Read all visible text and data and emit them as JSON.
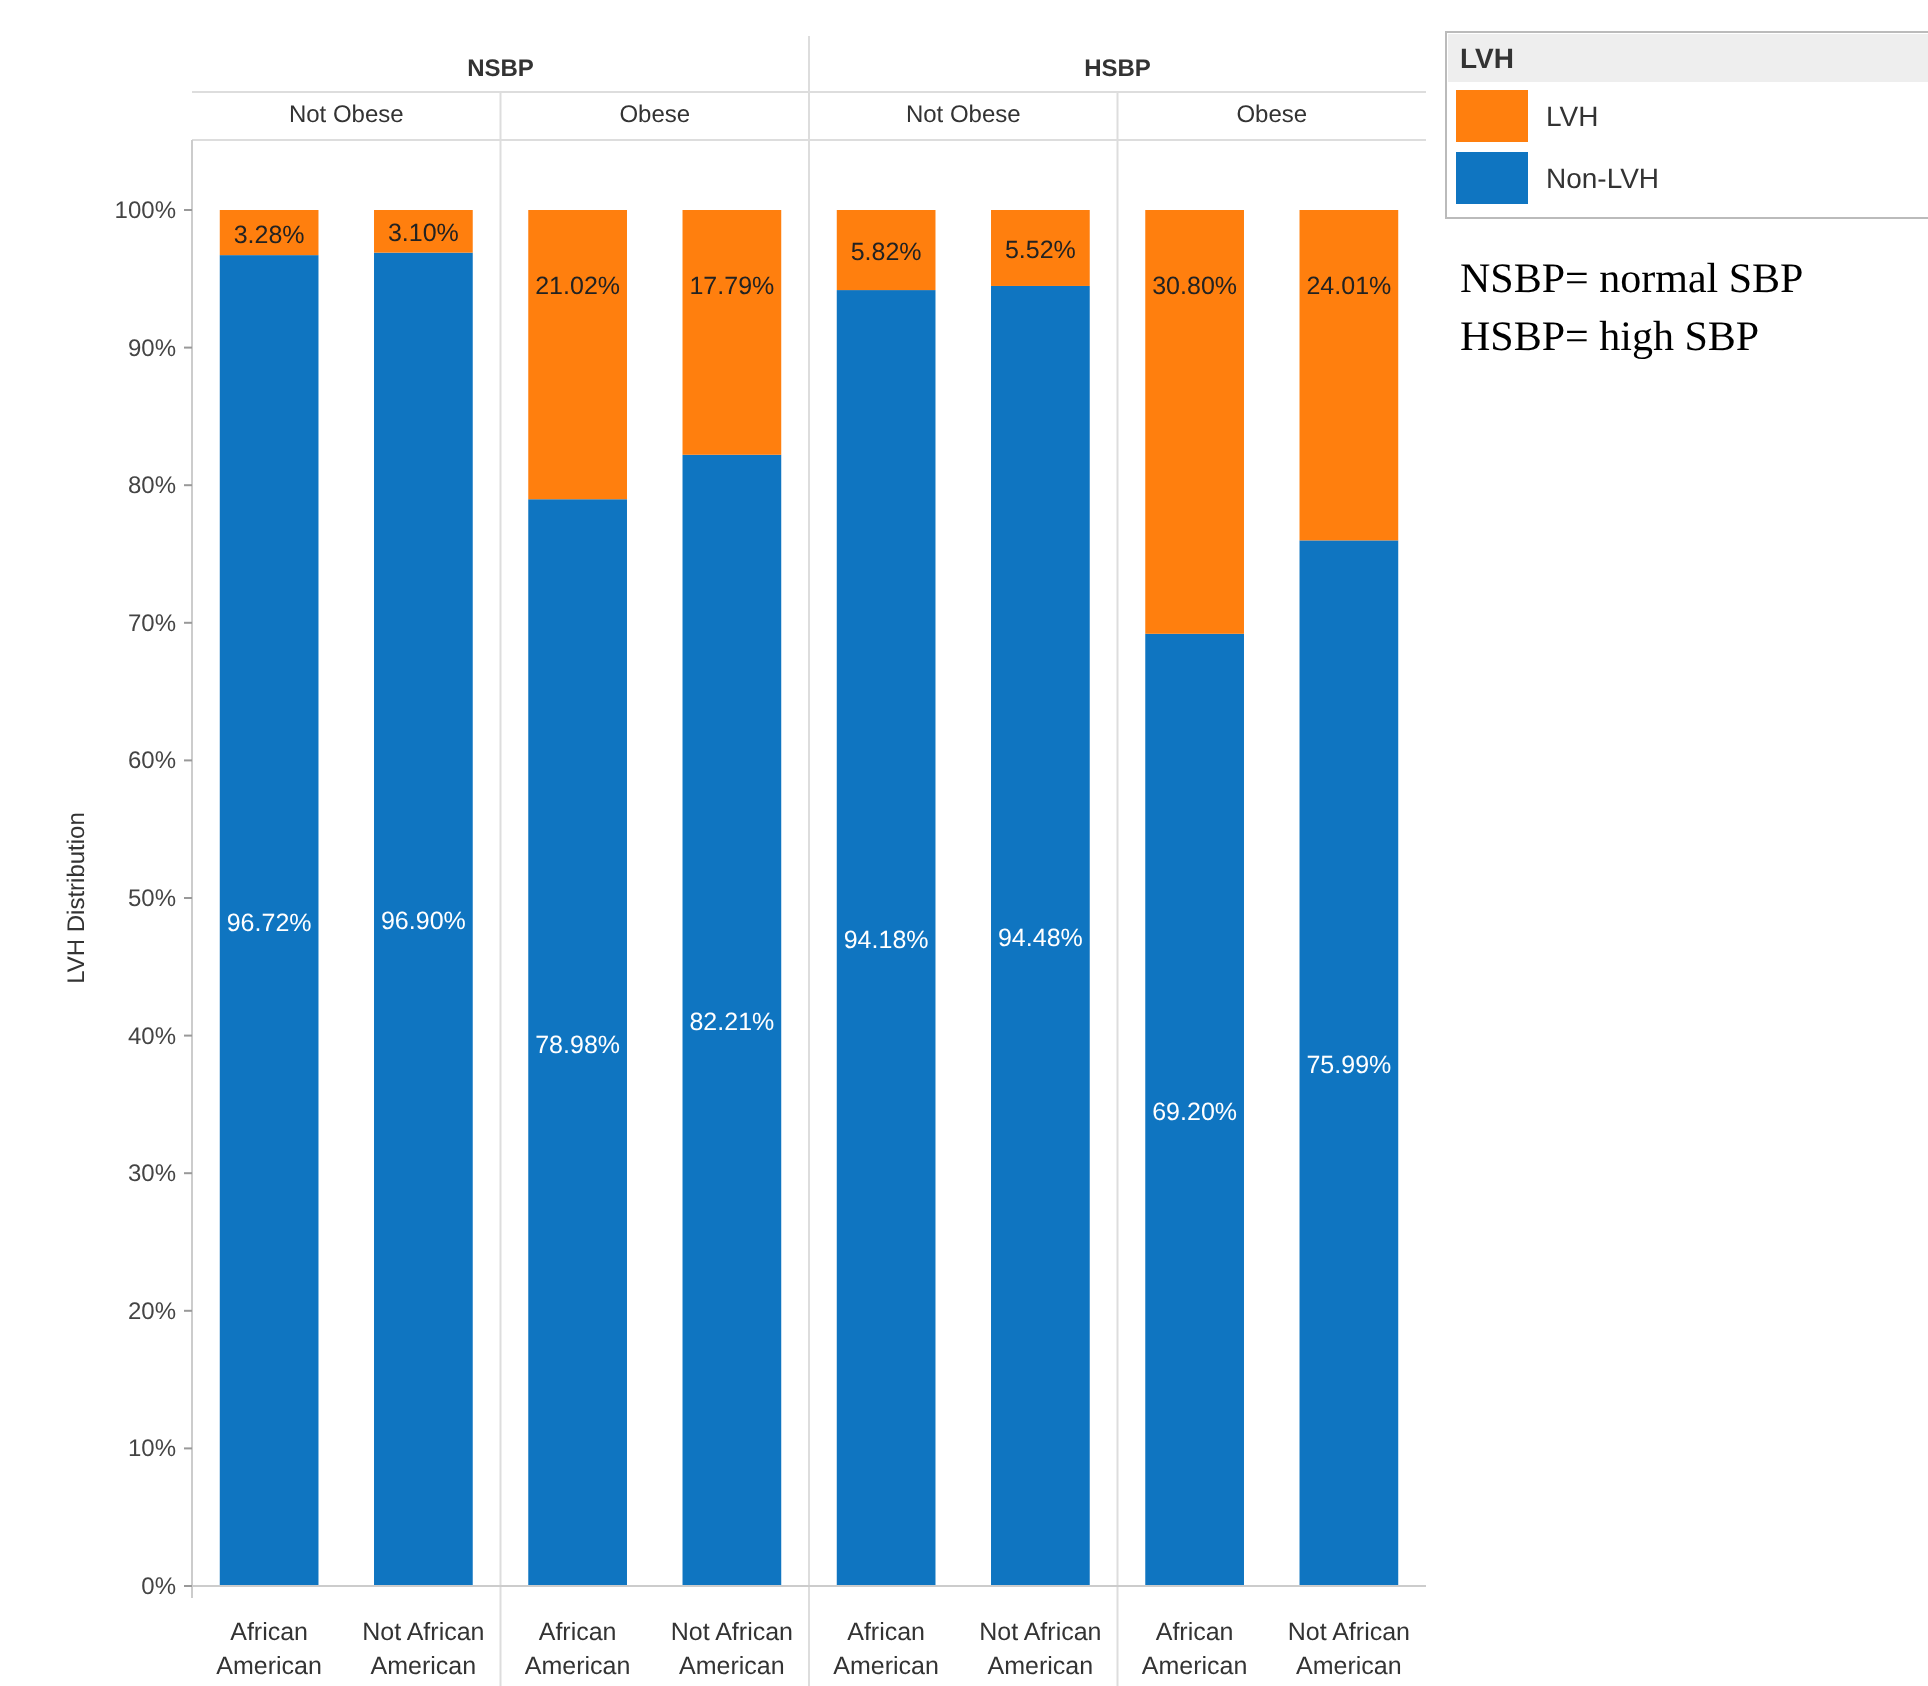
{
  "chart_data": {
    "type": "bar",
    "stacked": true,
    "ylabel": "LVH Distribution",
    "legend_title": "LVH",
    "legend": "top right",
    "categories": [
      "African American",
      "Not African American",
      "African American",
      "Not African American",
      "African American",
      "Not African American",
      "African American",
      "Not African American"
    ],
    "ylim": [
      0,
      100
    ],
    "yticks": [
      {
        "value": 0,
        "label": "0%"
      },
      {
        "value": 10,
        "label": "10%"
      },
      {
        "value": 20,
        "label": "20%"
      },
      {
        "value": 30,
        "label": "30%"
      },
      {
        "value": 40,
        "label": "40%"
      },
      {
        "value": 50,
        "label": "50%"
      },
      {
        "value": 60,
        "label": "60%"
      },
      {
        "value": 70,
        "label": "70%"
      },
      {
        "value": 80,
        "label": "80%"
      },
      {
        "value": 90,
        "label": "90%"
      },
      {
        "value": 100,
        "label": "100%"
      }
    ],
    "series": [
      {
        "name": "Non-LVH",
        "color": "#0f75c1",
        "values": [
          96.72,
          96.9,
          78.98,
          82.21,
          94.18,
          94.48,
          69.2,
          75.99
        ],
        "value_labels": [
          "96.72%",
          "96.90%",
          "78.98%",
          "82.21%",
          "94.18%",
          "94.48%",
          "69.20%",
          "75.99%"
        ]
      },
      {
        "name": "LVH",
        "color": "#ff7f0e",
        "values": [
          3.28,
          3.1,
          21.02,
          17.79,
          5.82,
          5.52,
          30.8,
          24.01
        ],
        "value_labels": [
          "3.28%",
          "3.10%",
          "21.02%",
          "17.79%",
          "5.82%",
          "5.52%",
          "30.80%",
          "24.01%"
        ]
      }
    ],
    "annotations": [
      "NSBP",
      "HSBP",
      "Not Obese",
      "Obese",
      "Not Obese",
      "Obese",
      "NSBP= normal SBP",
      "HSBP= high SBP"
    ]
  }
}
